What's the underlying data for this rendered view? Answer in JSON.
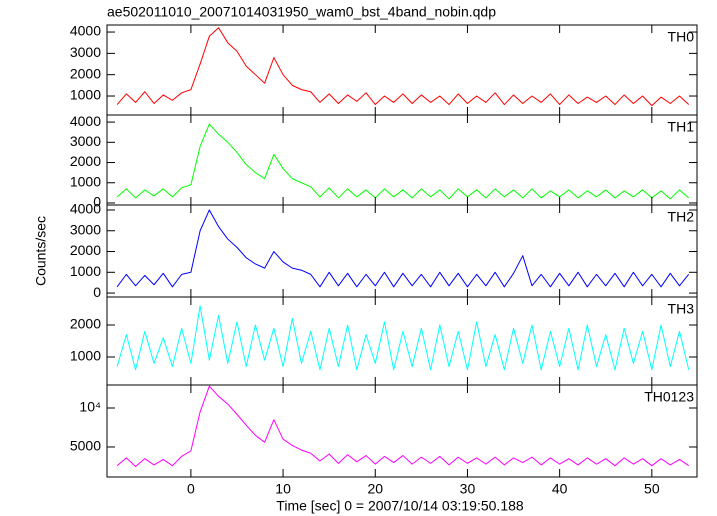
{
  "chart_data": {
    "type": "line",
    "title": "ae502011010_20071014031950_wam0_bst_4band_nobin.qdp",
    "xlabel": "Time [sec] 0 = 2007/10/14 03:19:50.188",
    "ylabel": "Counts/sec",
    "x": [
      -8,
      -7,
      -6,
      -5,
      -4,
      -3,
      -2,
      -1,
      0,
      1,
      2,
      3,
      4,
      5,
      6,
      7,
      8,
      9,
      10,
      11,
      12,
      13,
      14,
      15,
      16,
      17,
      18,
      19,
      20,
      21,
      22,
      23,
      24,
      25,
      26,
      27,
      28,
      29,
      30,
      31,
      32,
      33,
      34,
      35,
      36,
      37,
      38,
      39,
      40,
      41,
      42,
      43,
      44,
      45,
      46,
      47,
      48,
      49,
      50,
      51,
      52,
      53,
      54
    ],
    "xlim": [
      -9.1,
      54.9
    ],
    "xticks": [
      0,
      10,
      20,
      30,
      40,
      50
    ],
    "series": [
      {
        "name": "TH0",
        "color": "#ff0000",
        "ylim": [
          110,
          4330
        ],
        "yticks": [
          1000,
          2000,
          3000,
          4000
        ],
        "values": [
          600,
          1100,
          700,
          1200,
          650,
          1050,
          800,
          1150,
          1300,
          2500,
          3800,
          4200,
          3500,
          3100,
          2400,
          2000,
          1600,
          2800,
          2000,
          1500,
          1300,
          1200,
          700,
          1100,
          650,
          1050,
          750,
          1150,
          600,
          1000,
          700,
          1100,
          650,
          1050,
          700,
          1000,
          600,
          1100,
          650,
          1000,
          700,
          1150,
          600,
          1050,
          650,
          1000,
          700,
          1100,
          600,
          1050,
          650,
          950,
          700,
          1000,
          600,
          1050,
          650,
          1000,
          550,
          950,
          650,
          1000,
          600
        ]
      },
      {
        "name": "TH1",
        "color": "#00ff00",
        "ylim": [
          -100,
          4350
        ],
        "yticks": [
          0,
          1000,
          2000,
          3000,
          4000
        ],
        "values": [
          300,
          700,
          250,
          650,
          350,
          700,
          300,
          750,
          900,
          2800,
          3900,
          3400,
          3000,
          2500,
          1900,
          1500,
          1200,
          2400,
          1700,
          1200,
          1000,
          800,
          300,
          750,
          250,
          700,
          300,
          650,
          250,
          700,
          300,
          650,
          250,
          700,
          300,
          650,
          200,
          700,
          300,
          650,
          250,
          700,
          300,
          650,
          250,
          700,
          250,
          600,
          300,
          650,
          250,
          600,
          300,
          650,
          250,
          600,
          300,
          650,
          250,
          600,
          200,
          650,
          250
        ]
      },
      {
        "name": "TH2",
        "color": "#0000ff",
        "ylim": [
          -190,
          4240
        ],
        "yticks": [
          0,
          1000,
          2000,
          3000,
          4000
        ],
        "values": [
          300,
          900,
          350,
          850,
          400,
          950,
          300,
          900,
          1000,
          3000,
          4000,
          3200,
          2600,
          2200,
          1700,
          1400,
          1200,
          2000,
          1500,
          1200,
          1100,
          900,
          300,
          1000,
          350,
          950,
          300,
          900,
          350,
          1000,
          300,
          950,
          350,
          900,
          300,
          1000,
          350,
          950,
          300,
          900,
          350,
          1000,
          300,
          950,
          1800,
          350,
          900,
          300,
          950,
          350,
          1000,
          300,
          900,
          350,
          950,
          300,
          1000,
          350,
          900,
          300,
          950,
          350,
          900
        ]
      },
      {
        "name": "TH3",
        "color": "#00ffff",
        "ylim": [
          125,
          2875
        ],
        "yticks": [
          1000,
          2000
        ],
        "values": [
          700,
          1700,
          600,
          1800,
          800,
          1600,
          700,
          1900,
          800,
          2600,
          900,
          2300,
          800,
          2100,
          700,
          2000,
          900,
          1900,
          700,
          2200,
          800,
          1800,
          600,
          1900,
          700,
          2000,
          600,
          1700,
          800,
          2100,
          600,
          1800,
          700,
          1900,
          600,
          2000,
          700,
          1800,
          600,
          2100,
          700,
          1700,
          600,
          1900,
          800,
          2000,
          600,
          1800,
          700,
          1900,
          600,
          2000,
          700,
          1700,
          600,
          1900,
          800,
          1800,
          600,
          2000,
          700,
          1800,
          600
        ]
      },
      {
        "name": "TH0123",
        "color": "#ff00ff",
        "ylim": [
          1150,
          12950
        ],
        "yticks": [
          5000,
          {
            "value": 10000,
            "label": "10⁴"
          }
        ],
        "values": [
          2600,
          3600,
          2500,
          3500,
          2700,
          3400,
          2600,
          3800,
          4500,
          9500,
          12800,
          11500,
          10500,
          9200,
          7800,
          6500,
          5600,
          8500,
          6000,
          5200,
          4600,
          4200,
          3200,
          4100,
          2900,
          4000,
          3100,
          3900,
          2800,
          3800,
          3000,
          3900,
          2800,
          3700,
          2900,
          3800,
          2700,
          3700,
          2900,
          3600,
          2800,
          3700,
          2700,
          3600,
          3000,
          3700,
          2700,
          3600,
          2800,
          3500,
          2700,
          3600,
          2800,
          3500,
          2600,
          3600,
          2800,
          3500,
          2600,
          3500,
          2700,
          3400,
          2600
        ]
      }
    ]
  }
}
